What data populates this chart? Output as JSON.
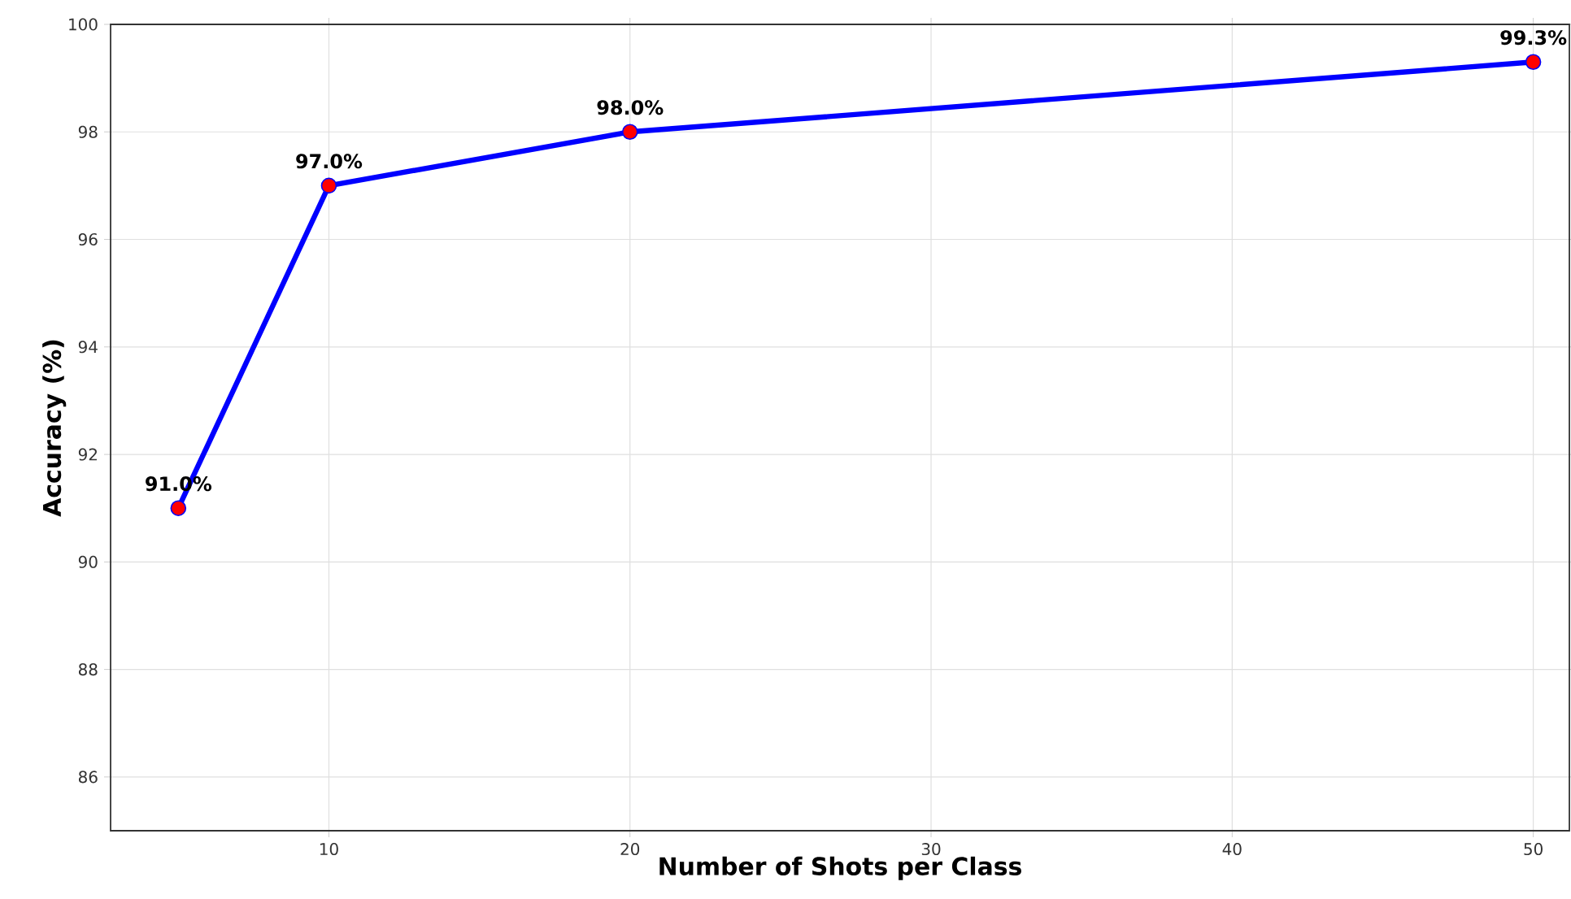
{
  "chart_data": {
    "type": "line",
    "xlabel": "Number of Shots per Class",
    "ylabel": "Accuracy (%)",
    "x": [
      5,
      10,
      20,
      50
    ],
    "series": [
      {
        "color": "#0000ff",
        "values": [
          91.0,
          97.0,
          98.0,
          99.3
        ],
        "value_labels": [
          "91.0%",
          "97.0%",
          "98.0%",
          "99.3%"
        ]
      }
    ],
    "xlim": [
      2.75,
      51.2
    ],
    "ylim": [
      85,
      100
    ],
    "xticks": [
      10,
      20,
      30,
      40,
      50
    ],
    "yticks": [
      86,
      88,
      90,
      92,
      94,
      96,
      98,
      100
    ],
    "grid": true,
    "marker": "circle",
    "line_style": "solid"
  }
}
